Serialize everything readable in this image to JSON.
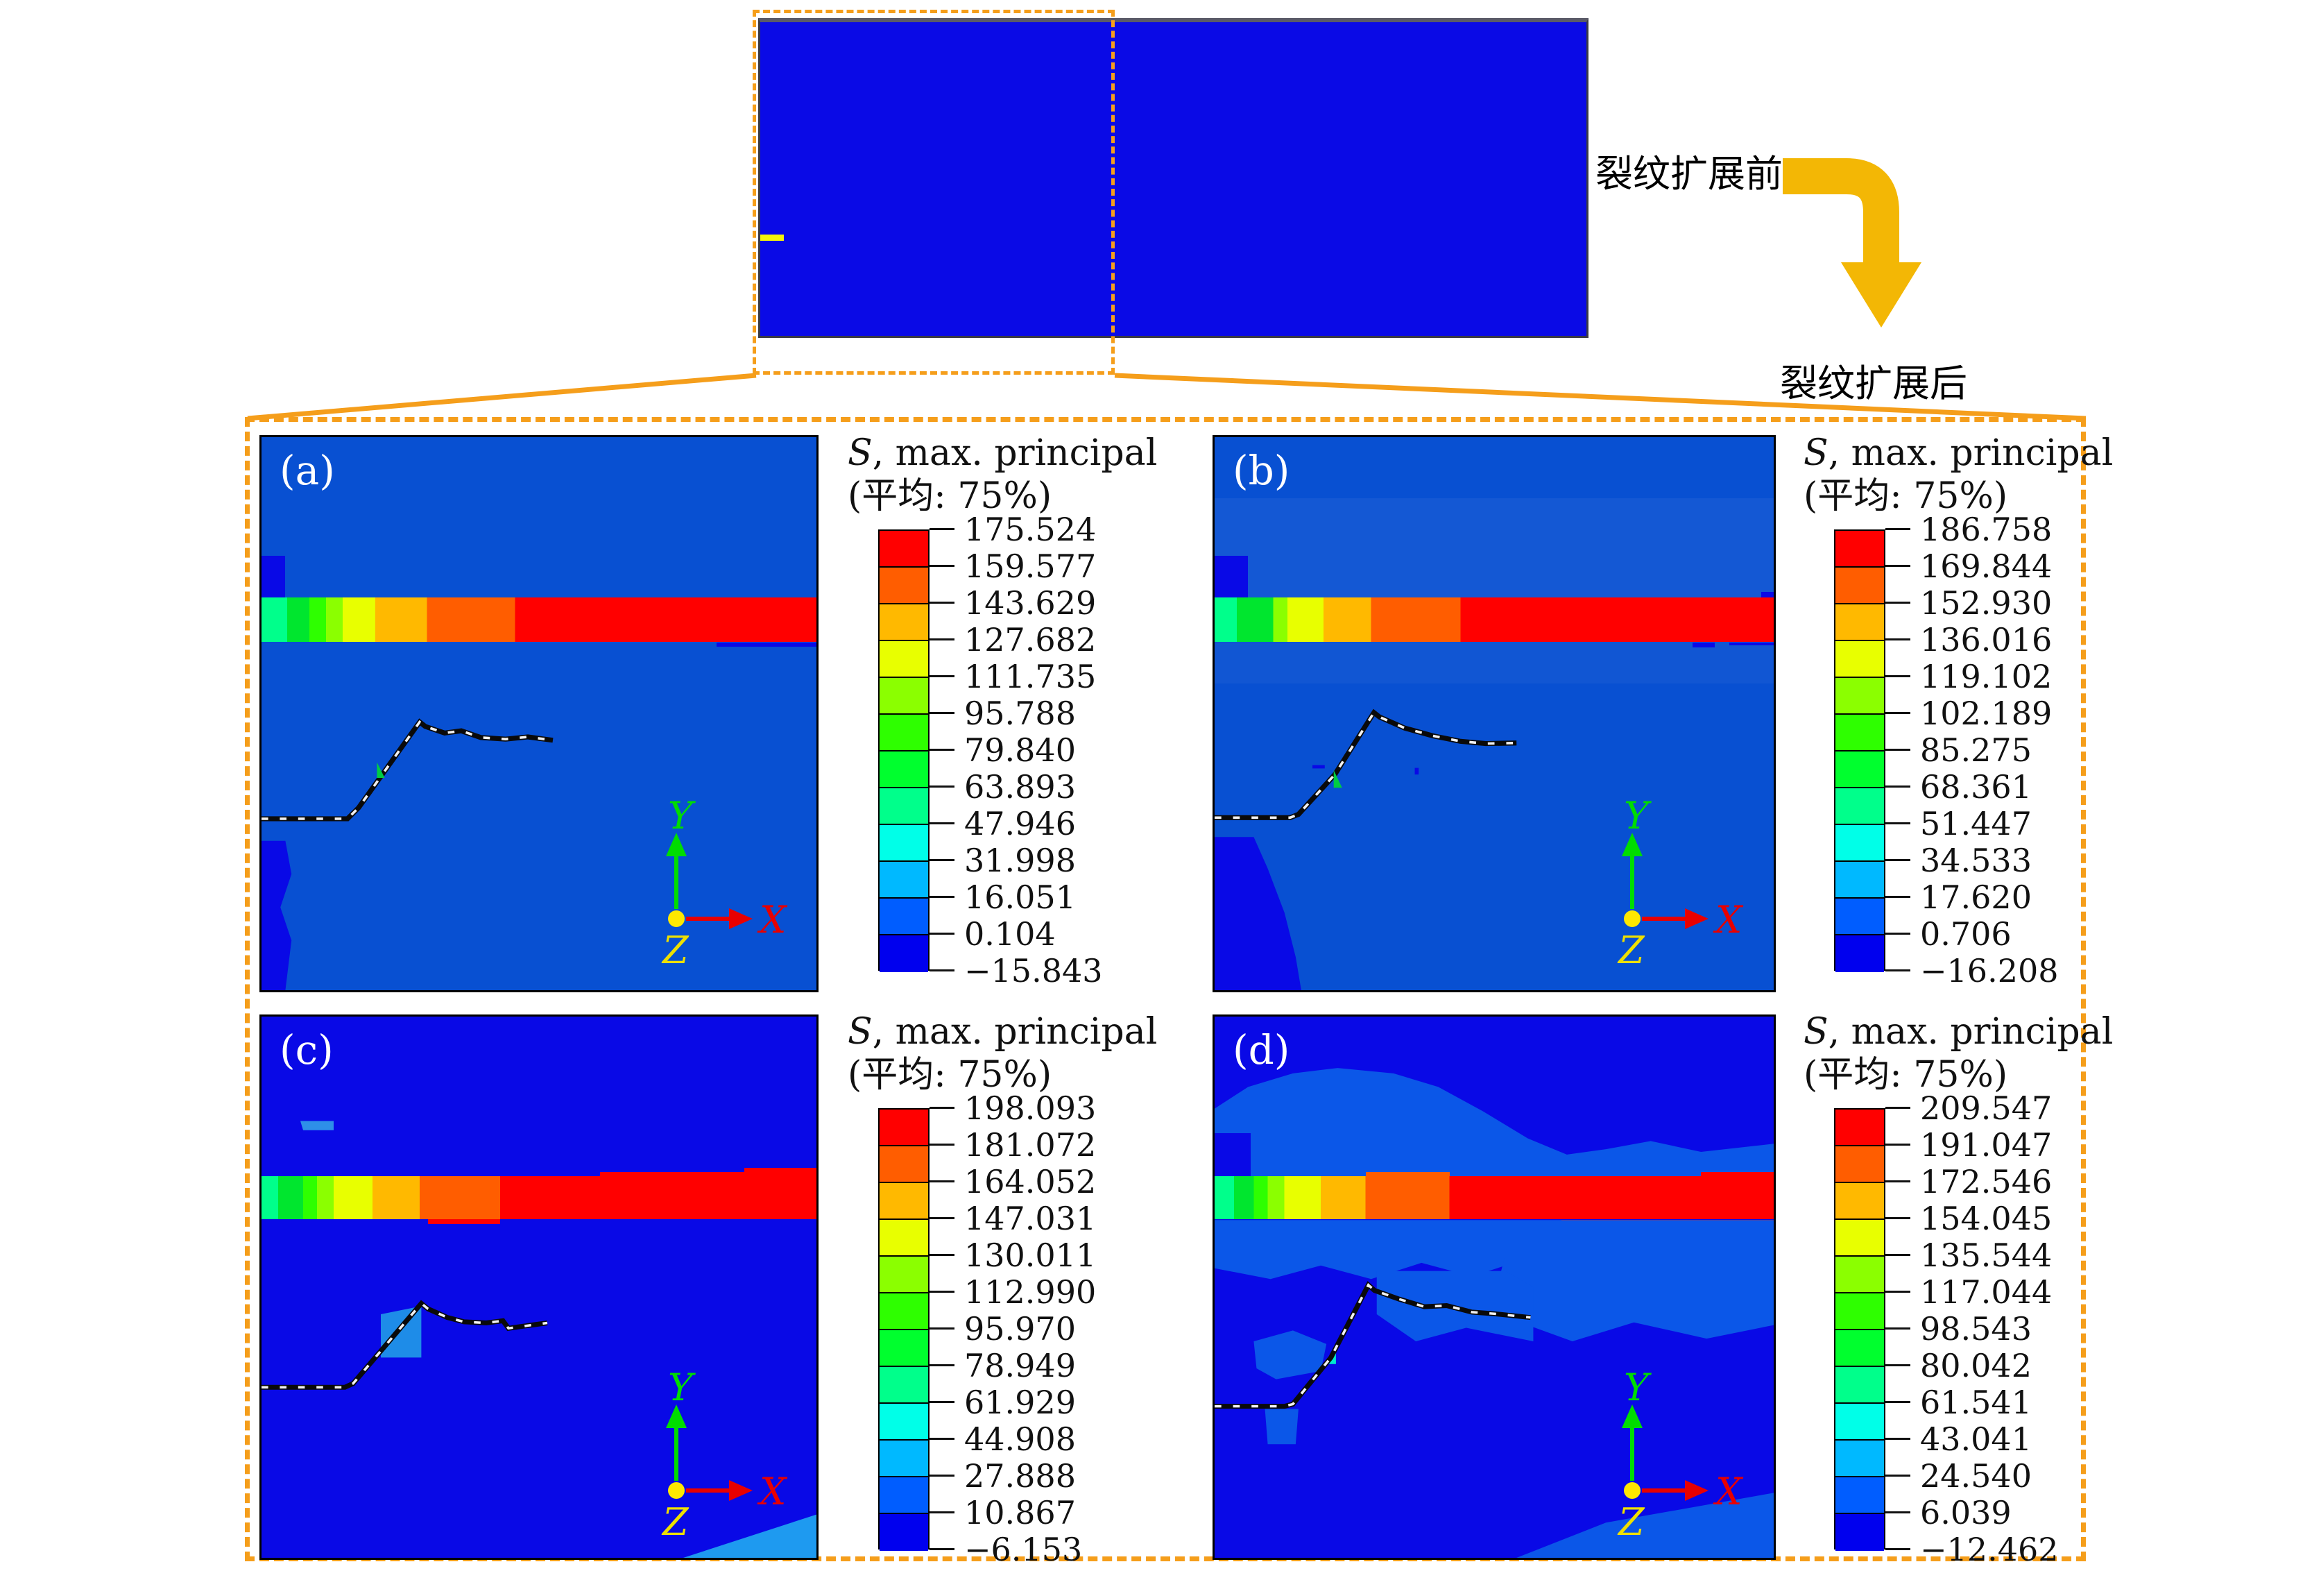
{
  "figure": {
    "annotations": {
      "before": "裂纹扩展前",
      "after": "裂纹扩展后"
    },
    "axis": {
      "x": "X",
      "y": "Y",
      "z": "Z"
    },
    "legend": {
      "title_s": "S",
      "title_rest": ", max. principal",
      "title_avg": "(平均: 75%)"
    },
    "panels": [
      {
        "label": "(a)",
        "values": [
          "175.524",
          "159.577",
          "143.629",
          "127.682",
          "111.735",
          "95.788",
          "79.840",
          "63.893",
          "47.946",
          "31.998",
          "16.051",
          "0.104",
          "−15.843"
        ]
      },
      {
        "label": "(b)",
        "values": [
          "186.758",
          "169.844",
          "152.930",
          "136.016",
          "119.102",
          "102.189",
          "85.275",
          "68.361",
          "51.447",
          "34.533",
          "17.620",
          "0.706",
          "−16.208"
        ]
      },
      {
        "label": "(c)",
        "values": [
          "198.093",
          "181.072",
          "164.052",
          "147.031",
          "130.011",
          "112.990",
          "95.970",
          "78.949",
          "61.929",
          "44.908",
          "27.888",
          "10.867",
          "−6.153"
        ]
      },
      {
        "label": "(d)",
        "values": [
          "209.547",
          "191.047",
          "172.546",
          "154.045",
          "135.544",
          "117.044",
          "98.543",
          "80.042",
          "61.541",
          "43.041",
          "24.540",
          "6.039",
          "−12.462"
        ]
      }
    ],
    "colors": {
      "colorbar_top_to_bottom": [
        "#FF0000",
        "#FF5D00",
        "#FFB900",
        "#E8FF00",
        "#8BFF00",
        "#2EFF00",
        "#00FF2E",
        "#00FF8B",
        "#00FFE8",
        "#00B9FF",
        "#005DFF",
        "#0000EE"
      ],
      "accent_dash": "#F59E1B",
      "arrow": "#F3B705",
      "panel_bg_ab": "#0850D2",
      "panel_bg_cd": "#0909E6",
      "patch_light": "#0B57E8",
      "precrack_yellow": "#F5F50A"
    }
  },
  "chart_data": [
    {
      "type": "heatmap",
      "panel": "(a)",
      "title": "S, max. principal (平均: 75%)",
      "legend_ticks": [
        175.524,
        159.577,
        143.629,
        127.682,
        111.735,
        95.788,
        79.84,
        63.893,
        47.946,
        31.998,
        16.051,
        0.104,
        -15.843
      ],
      "colorbar_colors_top_to_bottom": [
        "#FF0000",
        "#FF5D00",
        "#FFB900",
        "#E8FF00",
        "#8BFF00",
        "#2EFF00",
        "#00FF2E",
        "#00FF8B",
        "#00FFE8",
        "#00B9FF",
        "#005DFF",
        "#0000EE"
      ],
      "annotations": [
        "(a)",
        "X",
        "Y",
        "Z"
      ]
    },
    {
      "type": "heatmap",
      "panel": "(b)",
      "title": "S, max. principal (平均: 75%)",
      "legend_ticks": [
        186.758,
        169.844,
        152.93,
        136.016,
        119.102,
        102.189,
        85.275,
        68.361,
        51.447,
        34.533,
        17.62,
        0.706,
        -16.208
      ],
      "colorbar_colors_top_to_bottom": [
        "#FF0000",
        "#FF5D00",
        "#FFB900",
        "#E8FF00",
        "#8BFF00",
        "#2EFF00",
        "#00FF2E",
        "#00FF8B",
        "#00FFE8",
        "#00B9FF",
        "#005DFF",
        "#0000EE"
      ],
      "annotations": [
        "(b)",
        "X",
        "Y",
        "Z"
      ]
    },
    {
      "type": "heatmap",
      "panel": "(c)",
      "title": "S, max. principal (平均: 75%)",
      "legend_ticks": [
        198.093,
        181.072,
        164.052,
        147.031,
        130.011,
        112.99,
        95.97,
        78.949,
        61.929,
        44.908,
        27.888,
        10.867,
        -6.153
      ],
      "colorbar_colors_top_to_bottom": [
        "#FF0000",
        "#FF5D00",
        "#FFB900",
        "#E8FF00",
        "#8BFF00",
        "#2EFF00",
        "#00FF2E",
        "#00FF8B",
        "#00FFE8",
        "#00B9FF",
        "#005DFF",
        "#0000EE"
      ],
      "annotations": [
        "(c)",
        "X",
        "Y",
        "Z"
      ]
    },
    {
      "type": "heatmap",
      "panel": "(d)",
      "title": "S, max. principal (平均: 75%)",
      "legend_ticks": [
        209.547,
        191.047,
        172.546,
        154.045,
        135.544,
        117.044,
        98.543,
        80.042,
        61.541,
        43.041,
        24.54,
        6.039,
        -12.462
      ],
      "colorbar_colors_top_to_bottom": [
        "#FF0000",
        "#FF5D00",
        "#FFB900",
        "#E8FF00",
        "#8BFF00",
        "#2EFF00",
        "#00FF2E",
        "#00FF8B",
        "#00FFE8",
        "#00B9FF",
        "#005DFF",
        "#0000EE"
      ],
      "annotations": [
        "(d)",
        "X",
        "Y",
        "Z"
      ]
    }
  ]
}
